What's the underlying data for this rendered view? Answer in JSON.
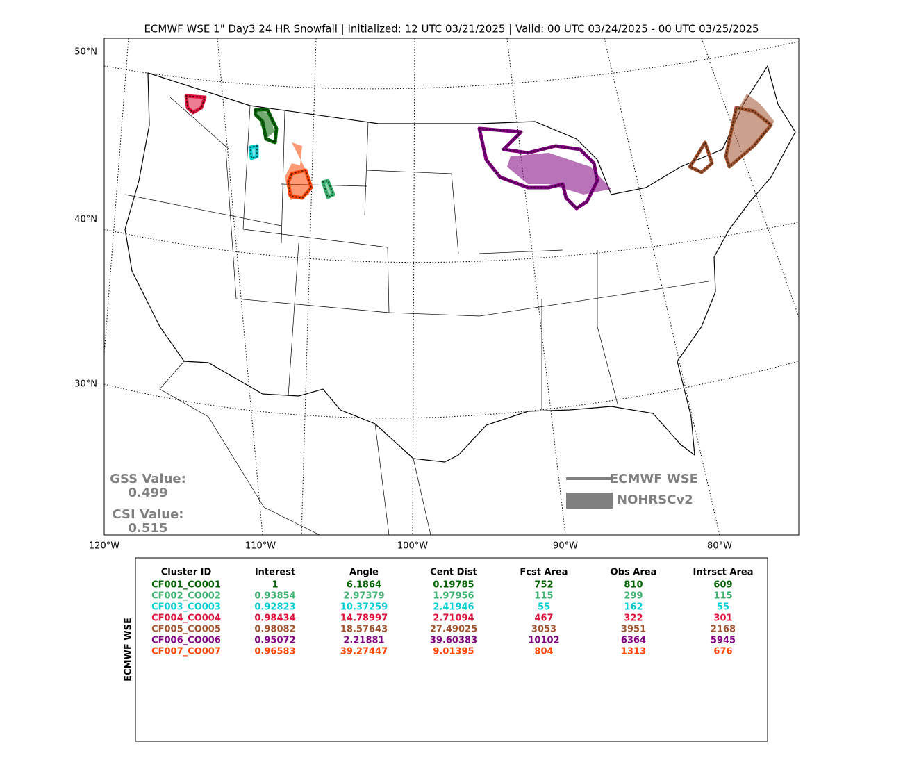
{
  "title": "ECMWF WSE 1\" Day3 24 HR Snowfall | Initialized: 12 UTC 03/21/2025 | Valid: 00 UTC 03/24/2025 - 00 UTC 03/25/2025",
  "map": {
    "lat_labels": [
      "50°N",
      "40°N",
      "30°N"
    ],
    "lon_labels": [
      "120°W",
      "110°W",
      "100°W",
      "90°W",
      "80°W"
    ]
  },
  "scores": {
    "gss_label": "GSS Value:",
    "gss_value": "0.499",
    "csi_label": "CSI Value:",
    "csi_value": "0.515"
  },
  "legend": {
    "line_label": "ECMWF WSE",
    "fill_label": "NOHRSCv2"
  },
  "table": {
    "side_label": "ECMWF WSE",
    "header": [
      "Cluster ID",
      "Interest",
      "Angle",
      "Cent Dist",
      "Fcst Area",
      "Obs Area",
      "Intrsct Area"
    ],
    "rows": [
      {
        "color": "#006400",
        "cells": [
          "CF001_CO001",
          "1",
          "6.1864",
          "0.19785",
          "752",
          "810",
          "609"
        ]
      },
      {
        "color": "#3cb371",
        "cells": [
          "CF002_CO002",
          "0.93854",
          "2.97379",
          "1.97956",
          "115",
          "299",
          "115"
        ]
      },
      {
        "color": "#00ced1",
        "cells": [
          "CF003_CO003",
          "0.92823",
          "10.37259",
          "2.41946",
          "55",
          "162",
          "55"
        ]
      },
      {
        "color": "#dc143c",
        "cells": [
          "CF004_CO004",
          "0.98434",
          "14.78997",
          "2.71094",
          "467",
          "322",
          "301"
        ]
      },
      {
        "color": "#a0522d",
        "cells": [
          "CF005_CO005",
          "0.98082",
          "18.57643",
          "27.49025",
          "3053",
          "3951",
          "2168"
        ]
      },
      {
        "color": "#800080",
        "cells": [
          "CF006_CO006",
          "0.95072",
          "2.21881",
          "39.60383",
          "10102",
          "6364",
          "5945"
        ]
      },
      {
        "color": "#ff4500",
        "cells": [
          "CF007_CO007",
          "0.96583",
          "39.27447",
          "9.01395",
          "804",
          "1313",
          "676"
        ]
      }
    ]
  }
}
